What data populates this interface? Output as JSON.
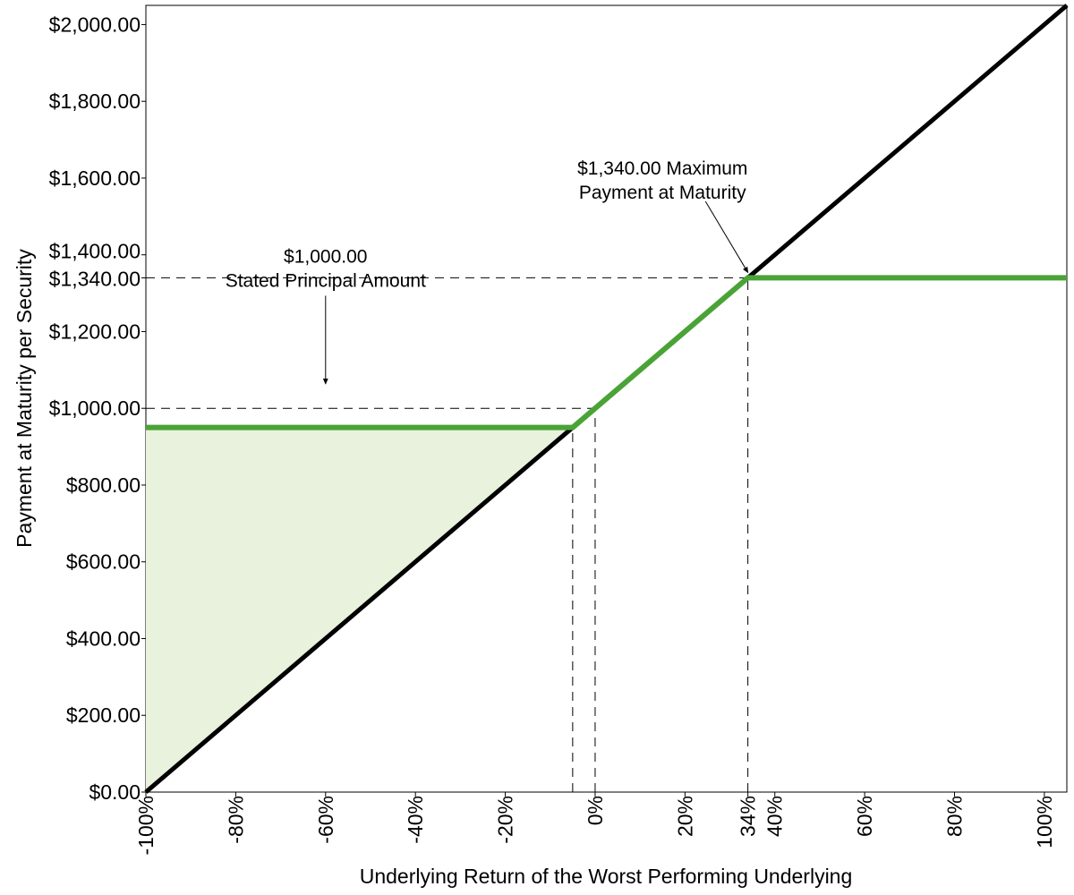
{
  "chart_data": {
    "type": "line",
    "xlabel": "Underlying Return of the Worst Performing Underlying",
    "ylabel": "Payment at Maturity per Security",
    "xlim": [
      -100,
      105
    ],
    "ylim": [
      0,
      2050
    ],
    "y_ticks": [
      {
        "value": 0,
        "label": "$0.00"
      },
      {
        "value": 200,
        "label": "$200.00"
      },
      {
        "value": 400,
        "label": "$400.00"
      },
      {
        "value": 600,
        "label": "$600.00"
      },
      {
        "value": 800,
        "label": "$800.00"
      },
      {
        "value": 1000,
        "label": "$1,000.00"
      },
      {
        "value": 1200,
        "label": "$1,200.00"
      },
      {
        "value": 1340,
        "label": "$1,340.00"
      },
      {
        "value": 1400,
        "label": "$1,400.00"
      },
      {
        "value": 1600,
        "label": "$1,600.00"
      },
      {
        "value": 1800,
        "label": "$1,800.00"
      },
      {
        "value": 2000,
        "label": "$2,000.00"
      }
    ],
    "x_ticks": [
      {
        "value": -100,
        "label": "-100%"
      },
      {
        "value": -80,
        "label": "-80%"
      },
      {
        "value": -60,
        "label": "-60%"
      },
      {
        "value": -40,
        "label": "-40%"
      },
      {
        "value": -20,
        "label": "-20%"
      },
      {
        "value": 0,
        "label": "0%"
      },
      {
        "value": 20,
        "label": "20%"
      },
      {
        "value": 34,
        "label": "34%"
      },
      {
        "value": 40,
        "label": "40%"
      },
      {
        "value": 60,
        "label": "60%"
      },
      {
        "value": 80,
        "label": "80%"
      },
      {
        "value": 100,
        "label": "100%"
      }
    ],
    "series": [
      {
        "color": "#000000",
        "x": [
          -100,
          105
        ],
        "y": [
          0,
          2050
        ]
      },
      {
        "color": "#4aa336",
        "x": [
          -100,
          -5,
          34,
          105
        ],
        "y": [
          950,
          950,
          1340,
          1340
        ]
      }
    ],
    "shaded_region": {
      "color": "#e8f2dc",
      "x": [
        -100,
        -5,
        -100
      ],
      "y": [
        0,
        950,
        950
      ]
    },
    "reference_lines": [
      {
        "from": [
          -100,
          1000
        ],
        "to": [
          0,
          1000
        ]
      },
      {
        "from": [
          -100,
          1340
        ],
        "to": [
          105,
          1340
        ]
      },
      {
        "from": [
          -5,
          0
        ],
        "to": [
          -5,
          950
        ]
      },
      {
        "from": [
          0,
          0
        ],
        "to": [
          0,
          1000
        ]
      },
      {
        "from": [
          34,
          0
        ],
        "to": [
          34,
          1340
        ]
      }
    ],
    "annotations": [
      {
        "lines": [
          "$1,000.00",
          "Stated Principal Amount"
        ],
        "text_at": [
          -60,
          1340
        ],
        "arrow_to": [
          -60,
          1050
        ]
      },
      {
        "lines": [
          "$1,340.00 Maximum",
          "Payment at Maturity"
        ],
        "text_at": [
          15,
          1600
        ],
        "arrow_to": [
          34,
          1340
        ]
      }
    ],
    "colors": {
      "green": "#4aa336",
      "fill": "#e8f2dc",
      "black": "#000000"
    }
  }
}
